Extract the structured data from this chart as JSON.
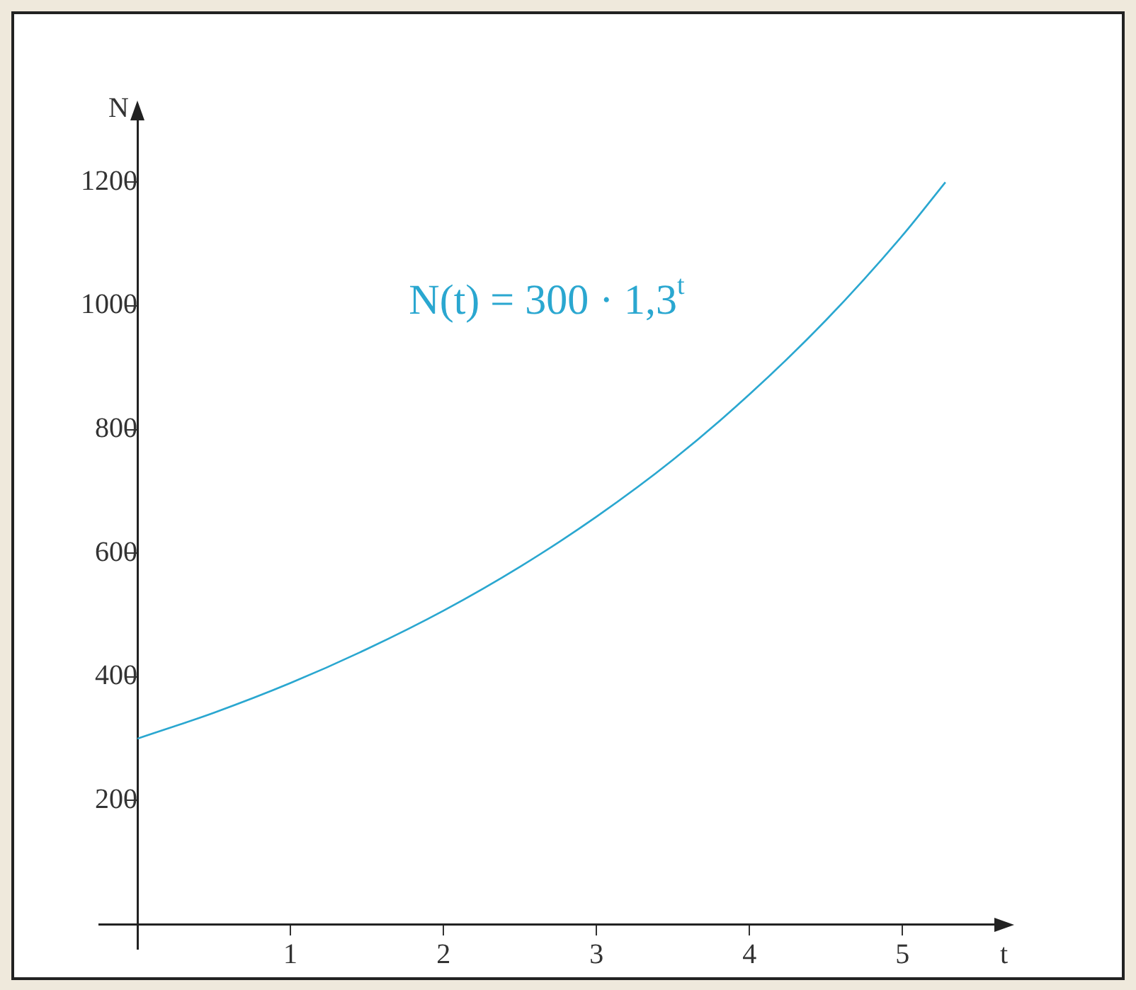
{
  "chart_data": {
    "type": "line",
    "xlabel": "t",
    "ylabel": "N",
    "annotations": [
      "N(t) = 300 · 1,3$^{t}$"
    ],
    "x": [
      0,
      0.5,
      1,
      1.5,
      2,
      2.5,
      3,
      3.5,
      4,
      4.5,
      5,
      5.28
    ],
    "series": [
      {
        "color": "#2aa7d0",
        "values": [
          300,
          342,
          390,
          445,
          507,
          578,
          659,
          751,
          857,
          977,
          1114,
          1200
        ]
      }
    ],
    "xlim": [
      -0.25,
      5.6
    ],
    "ylim": [
      -40,
      1300
    ],
    "xticks": [
      {
        "value": 0,
        "label": null
      },
      1,
      2,
      3,
      4,
      5
    ],
    "yticks": [
      200,
      400,
      600,
      800,
      1000,
      1200
    ],
    "grid": false,
    "legend": false,
    "marker": "none",
    "line_style": "solid"
  }
}
